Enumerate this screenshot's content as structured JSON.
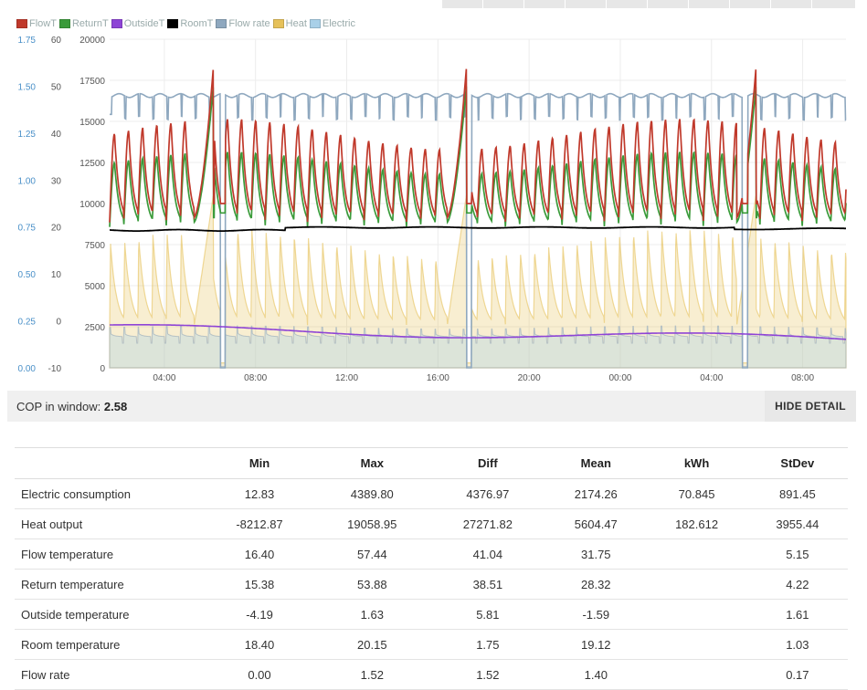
{
  "chart_data": {
    "type": "line",
    "legend": [
      "FlowT",
      "ReturnT",
      "OutsideT",
      "RoomT",
      "Flow rate",
      "Heat",
      "Electric"
    ],
    "legend_colors": [
      "#c0392b",
      "#3a9b3a",
      "#8e44d6",
      "#000000",
      "#8fa8bf",
      "#e6c15a",
      "#a9d0e8"
    ],
    "legend_placement": "top-left",
    "x_ticks": [
      "04:00",
      "08:00",
      "12:00",
      "16:00",
      "20:00",
      "00:00",
      "04:00",
      "08:00"
    ],
    "x_range_hours": [
      1.6,
      33.9
    ],
    "axes": {
      "flow_rate": {
        "ticks": [
          "0.00",
          "0.25",
          "0.50",
          "0.75",
          "1.00",
          "1.25",
          "1.50",
          "1.75"
        ],
        "range": [
          0,
          1.75
        ],
        "color": "#4a90c8"
      },
      "temperature": {
        "ticks": [
          "-10",
          "0",
          "10",
          "20",
          "30",
          "40",
          "50",
          "60"
        ],
        "range": [
          -10,
          60
        ]
      },
      "power": {
        "ticks": [
          "0",
          "2500",
          "5000",
          "7500",
          "10000",
          "12500",
          "15000",
          "17500",
          "20000"
        ],
        "range": [
          0,
          20000
        ]
      }
    },
    "grid": true,
    "cycle_period_hours": 0.62,
    "series": [
      {
        "name": "FlowT",
        "axis": "temperature",
        "approx_range": [
          16.4,
          57.44
        ],
        "typical_peak": 42,
        "typical_trough": 21,
        "spikes_at_hours": [
          6.0,
          17.1,
          29.8
        ]
      },
      {
        "name": "ReturnT",
        "axis": "temperature",
        "approx_range": [
          15.38,
          53.88
        ],
        "typical_peak": 36,
        "typical_trough": 20
      },
      {
        "name": "OutsideT",
        "axis": "temperature",
        "approx_range": [
          -4.19,
          1.63
        ]
      },
      {
        "name": "RoomT",
        "axis": "temperature",
        "approx_range": [
          18.4,
          20.15
        ],
        "typical": 19.5
      },
      {
        "name": "Flow rate",
        "axis": "flow_rate",
        "approx_range": [
          0.0,
          1.52
        ],
        "typical": 1.45,
        "dropout_hours": [
          6.5,
          17.3,
          29.4
        ]
      },
      {
        "name": "Heat",
        "axis": "power",
        "approx_range": [
          -8212.87,
          19058.95
        ],
        "typical_peak": 8000
      },
      {
        "name": "Electric",
        "axis": "power",
        "approx_range": [
          12.83,
          4389.8
        ],
        "typical_peak": 2500,
        "typical_trough": 1900
      }
    ]
  },
  "cop": {
    "label": "COP in window:",
    "value": "2.58"
  },
  "hide_detail_label": "HIDE DETAIL",
  "stats": {
    "headers": [
      "",
      "Min",
      "Max",
      "Diff",
      "Mean",
      "kWh",
      "StDev"
    ],
    "rows": [
      {
        "name": "Electric consumption",
        "min": "12.83",
        "max": "4389.80",
        "diff": "4376.97",
        "mean": "2174.26",
        "kwh": "70.845",
        "stdev": "891.45"
      },
      {
        "name": "Heat output",
        "min": "-8212.87",
        "max": "19058.95",
        "diff": "27271.82",
        "mean": "5604.47",
        "kwh": "182.612",
        "stdev": "3955.44"
      },
      {
        "name": "Flow temperature",
        "min": "16.40",
        "max": "57.44",
        "diff": "41.04",
        "mean": "31.75",
        "kwh": "",
        "stdev": "5.15"
      },
      {
        "name": "Return temperature",
        "min": "15.38",
        "max": "53.88",
        "diff": "38.51",
        "mean": "28.32",
        "kwh": "",
        "stdev": "4.22"
      },
      {
        "name": "Outside temperature",
        "min": "-4.19",
        "max": "1.63",
        "diff": "5.81",
        "mean": "-1.59",
        "kwh": "",
        "stdev": "1.61"
      },
      {
        "name": "Room temperature",
        "min": "18.40",
        "max": "20.15",
        "diff": "1.75",
        "mean": "19.12",
        "kwh": "",
        "stdev": "1.03"
      },
      {
        "name": "Flow rate",
        "min": "0.00",
        "max": "1.52",
        "diff": "1.52",
        "mean": "1.40",
        "kwh": "",
        "stdev": "0.17"
      }
    ]
  }
}
